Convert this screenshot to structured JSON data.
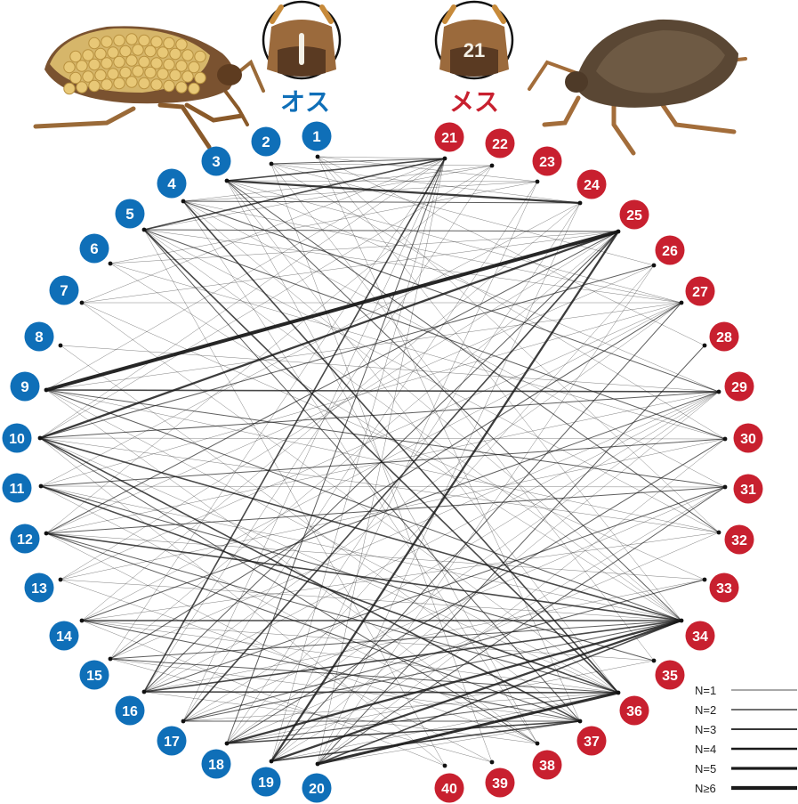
{
  "labels": {
    "male": "オス",
    "female": "メス",
    "head_tag_female": "21"
  },
  "colors": {
    "male": "#0f6fb8",
    "female": "#c8202f",
    "edge": "#1a1a1a"
  },
  "male_nodes": [
    "1",
    "2",
    "3",
    "4",
    "5",
    "6",
    "7",
    "8",
    "9",
    "10",
    "11",
    "12",
    "13",
    "14",
    "15",
    "16",
    "17",
    "18",
    "19",
    "20"
  ],
  "female_nodes": [
    "21",
    "22",
    "23",
    "24",
    "25",
    "26",
    "27",
    "28",
    "29",
    "30",
    "31",
    "32",
    "33",
    "34",
    "35",
    "36",
    "37",
    "38",
    "39",
    "40"
  ],
  "legend": [
    "N=1",
    "N=2",
    "N=3",
    "N=4",
    "N=5",
    "N≥6"
  ],
  "edges": [
    [
      9,
      25,
      6
    ],
    [
      10,
      25,
      4
    ],
    [
      18,
      34,
      4
    ],
    [
      19,
      34,
      4
    ],
    [
      20,
      36,
      5
    ],
    [
      18,
      37,
      3
    ],
    [
      19,
      25,
      4
    ],
    [
      3,
      24,
      4
    ],
    [
      3,
      21,
      3
    ],
    [
      5,
      21,
      3
    ],
    [
      5,
      36,
      3
    ],
    [
      16,
      34,
      3
    ],
    [
      16,
      21,
      3
    ],
    [
      4,
      36,
      3
    ],
    [
      10,
      34,
      3
    ],
    [
      12,
      34,
      3
    ],
    [
      12,
      25,
      2
    ],
    [
      17,
      25,
      3
    ],
    [
      14,
      34,
      3
    ],
    [
      9,
      29,
      3
    ],
    [
      10,
      37,
      3
    ],
    [
      11,
      36,
      3
    ],
    [
      12,
      36,
      2
    ],
    [
      15,
      34,
      2
    ],
    [
      16,
      25,
      2
    ],
    [
      18,
      21,
      2
    ],
    [
      20,
      34,
      3
    ],
    [
      17,
      34,
      2
    ],
    [
      19,
      37,
      3
    ],
    [
      20,
      28,
      2
    ],
    [
      5,
      25,
      2
    ],
    [
      4,
      24,
      2
    ],
    [
      2,
      21,
      2
    ],
    [
      3,
      34,
      2
    ],
    [
      3,
      32,
      2
    ],
    [
      5,
      30,
      2
    ],
    [
      4,
      29,
      2
    ],
    [
      10,
      29,
      2
    ],
    [
      10,
      26,
      2
    ],
    [
      11,
      30,
      2
    ],
    [
      12,
      31,
      2
    ],
    [
      13,
      27,
      1
    ],
    [
      9,
      31,
      2
    ],
    [
      15,
      27,
      2
    ],
    [
      14,
      29,
      2
    ],
    [
      16,
      31,
      2
    ],
    [
      17,
      33,
      2
    ],
    [
      18,
      30,
      2
    ],
    [
      19,
      27,
      2
    ],
    [
      20,
      31,
      2
    ],
    [
      16,
      36,
      3
    ],
    [
      18,
      36,
      2
    ],
    [
      14,
      37,
      2
    ],
    [
      17,
      37,
      2
    ],
    [
      15,
      36,
      2
    ],
    [
      12,
      37,
      2
    ],
    [
      11,
      35,
      2
    ],
    [
      10,
      38,
      2
    ],
    [
      9,
      34,
      2
    ],
    [
      5,
      37,
      2
    ],
    [
      1,
      21,
      1
    ],
    [
      1,
      23,
      1
    ],
    [
      1,
      34,
      1
    ],
    [
      1,
      28,
      1
    ],
    [
      2,
      22,
      1
    ],
    [
      2,
      24,
      1
    ],
    [
      2,
      35,
      1
    ],
    [
      2,
      39,
      1
    ],
    [
      3,
      23,
      1
    ],
    [
      3,
      27,
      1
    ],
    [
      3,
      36,
      1
    ],
    [
      4,
      22,
      1
    ],
    [
      4,
      23,
      1
    ],
    [
      4,
      31,
      1
    ],
    [
      4,
      38,
      1
    ],
    [
      5,
      22,
      1
    ],
    [
      5,
      27,
      1
    ],
    [
      5,
      32,
      1
    ],
    [
      5,
      40,
      1
    ],
    [
      6,
      25,
      1
    ],
    [
      6,
      34,
      1
    ],
    [
      7,
      27,
      1
    ],
    [
      7,
      21,
      1
    ],
    [
      7,
      36,
      1
    ],
    [
      8,
      29,
      1
    ],
    [
      9,
      21,
      1
    ],
    [
      9,
      27,
      1
    ],
    [
      9,
      32,
      1
    ],
    [
      9,
      36,
      1
    ],
    [
      9,
      38,
      1
    ],
    [
      10,
      21,
      1
    ],
    [
      10,
      22,
      1
    ],
    [
      10,
      30,
      1
    ],
    [
      10,
      32,
      1
    ],
    [
      10,
      36,
      1
    ],
    [
      10,
      40,
      1
    ],
    [
      11,
      24,
      1
    ],
    [
      11,
      27,
      1
    ],
    [
      11,
      31,
      1
    ],
    [
      11,
      34,
      1
    ],
    [
      11,
      38,
      1
    ],
    [
      12,
      22,
      1
    ],
    [
      12,
      26,
      1
    ],
    [
      12,
      29,
      1
    ],
    [
      12,
      33,
      1
    ],
    [
      12,
      39,
      1
    ],
    [
      13,
      25,
      1
    ],
    [
      13,
      34,
      1
    ],
    [
      13,
      30,
      1
    ],
    [
      14,
      24,
      1
    ],
    [
      14,
      27,
      1
    ],
    [
      14,
      32,
      1
    ],
    [
      14,
      36,
      1
    ],
    [
      14,
      40,
      1
    ],
    [
      15,
      21,
      1
    ],
    [
      15,
      25,
      1
    ],
    [
      15,
      29,
      1
    ],
    [
      15,
      37,
      1
    ],
    [
      15,
      39,
      1
    ],
    [
      16,
      22,
      1
    ],
    [
      16,
      27,
      1
    ],
    [
      16,
      29,
      1
    ],
    [
      16,
      33,
      1
    ],
    [
      16,
      38,
      1
    ],
    [
      17,
      21,
      1
    ],
    [
      17,
      23,
      1
    ],
    [
      17,
      29,
      1
    ],
    [
      17,
      31,
      1
    ],
    [
      17,
      36,
      1
    ],
    [
      18,
      24,
      1
    ],
    [
      18,
      26,
      1
    ],
    [
      18,
      29,
      1
    ],
    [
      18,
      32,
      1
    ],
    [
      18,
      35,
      1
    ],
    [
      19,
      21,
      1
    ],
    [
      19,
      23,
      1
    ],
    [
      19,
      29,
      1
    ],
    [
      19,
      31,
      1
    ],
    [
      19,
      36,
      1
    ],
    [
      20,
      21,
      1
    ],
    [
      20,
      24,
      1
    ],
    [
      20,
      26,
      1
    ],
    [
      20,
      30,
      1
    ],
    [
      20,
      37,
      1
    ],
    [
      3,
      29,
      1
    ],
    [
      3,
      38,
      1
    ],
    [
      2,
      30,
      1
    ],
    [
      1,
      32,
      1
    ],
    [
      4,
      34,
      1
    ],
    [
      5,
      34,
      1
    ],
    [
      6,
      30,
      1
    ],
    [
      7,
      33,
      1
    ],
    [
      8,
      37,
      1
    ],
    [
      13,
      38,
      1
    ],
    [
      14,
      35,
      1
    ],
    [
      6,
      23,
      1
    ],
    [
      7,
      25,
      1
    ],
    [
      2,
      26,
      1
    ],
    [
      1,
      37,
      1
    ],
    [
      4,
      27,
      1
    ]
  ]
}
